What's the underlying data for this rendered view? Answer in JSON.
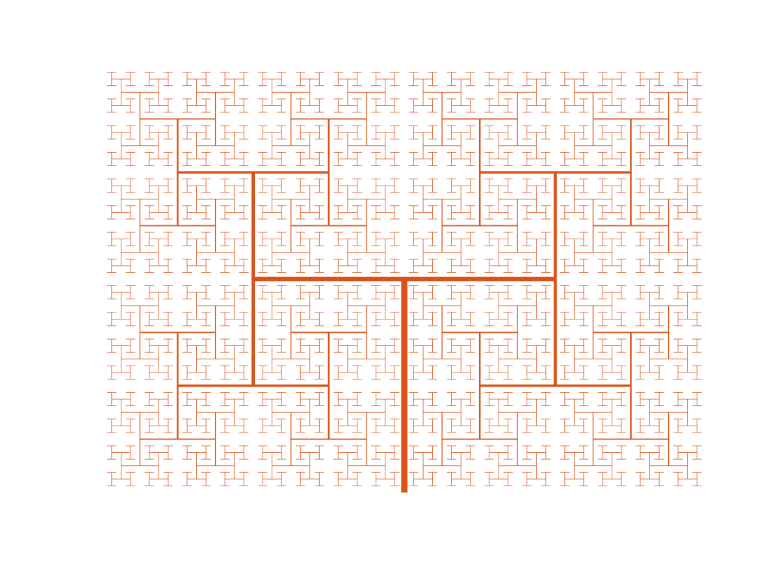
{
  "figure": {
    "kind": "fractal",
    "name": "",
    "recursion_depth": 11,
    "segment_length_ratio": 0.7071,
    "stroke_color": "#d95319",
    "background_color": "#ffffff"
  }
}
